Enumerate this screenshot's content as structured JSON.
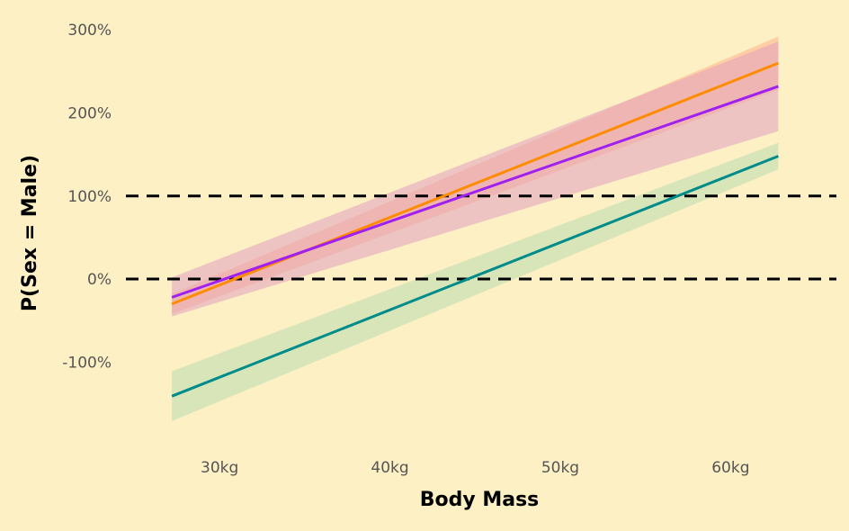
{
  "chart_data": {
    "type": "line",
    "title": "",
    "xlabel": "Body Mass",
    "ylabel": "P(Sex = Male)",
    "xlim": [
      24.5,
      66
    ],
    "ylim": [
      -195,
      310
    ],
    "x_ticks": [
      {
        "value": 30,
        "label": "30kg"
      },
      {
        "value": 40,
        "label": "40kg"
      },
      {
        "value": 50,
        "label": "50kg"
      },
      {
        "value": 60,
        "label": "60kg"
      }
    ],
    "y_ticks": [
      {
        "value": 300,
        "label": "300%"
      },
      {
        "value": 200,
        "label": "200%"
      },
      {
        "value": 100,
        "label": "100%"
      },
      {
        "value": 0,
        "label": "0%"
      },
      {
        "value": -100,
        "label": "-100%"
      }
    ],
    "reference_lines": [
      {
        "y": 100,
        "style": "dashed",
        "color": "#000000"
      },
      {
        "y": 0,
        "style": "dashed",
        "color": "#000000"
      }
    ],
    "grid": false,
    "legend": "none",
    "series": [
      {
        "color": "#ff8c00",
        "band_color": "#ffb38a",
        "x": [
          27.2,
          62.8
        ],
        "y": [
          -30,
          260
        ],
        "ci_lower": [
          -42,
          228
        ],
        "ci_upper": [
          -18,
          292
        ]
      },
      {
        "color": "#a020f0",
        "band_color": "#e0a0c0",
        "x": [
          27.2,
          62.8
        ],
        "y": [
          -22,
          232
        ],
        "ci_lower": [
          -45,
          178
        ],
        "ci_upper": [
          2,
          286
        ]
      },
      {
        "color": "#008b8b",
        "band_color": "#b8dcb0",
        "x": [
          27.2,
          62.8
        ],
        "y": [
          -141,
          148
        ],
        "ci_lower": [
          -171,
          132
        ],
        "ci_upper": [
          -111,
          164
        ]
      }
    ]
  }
}
